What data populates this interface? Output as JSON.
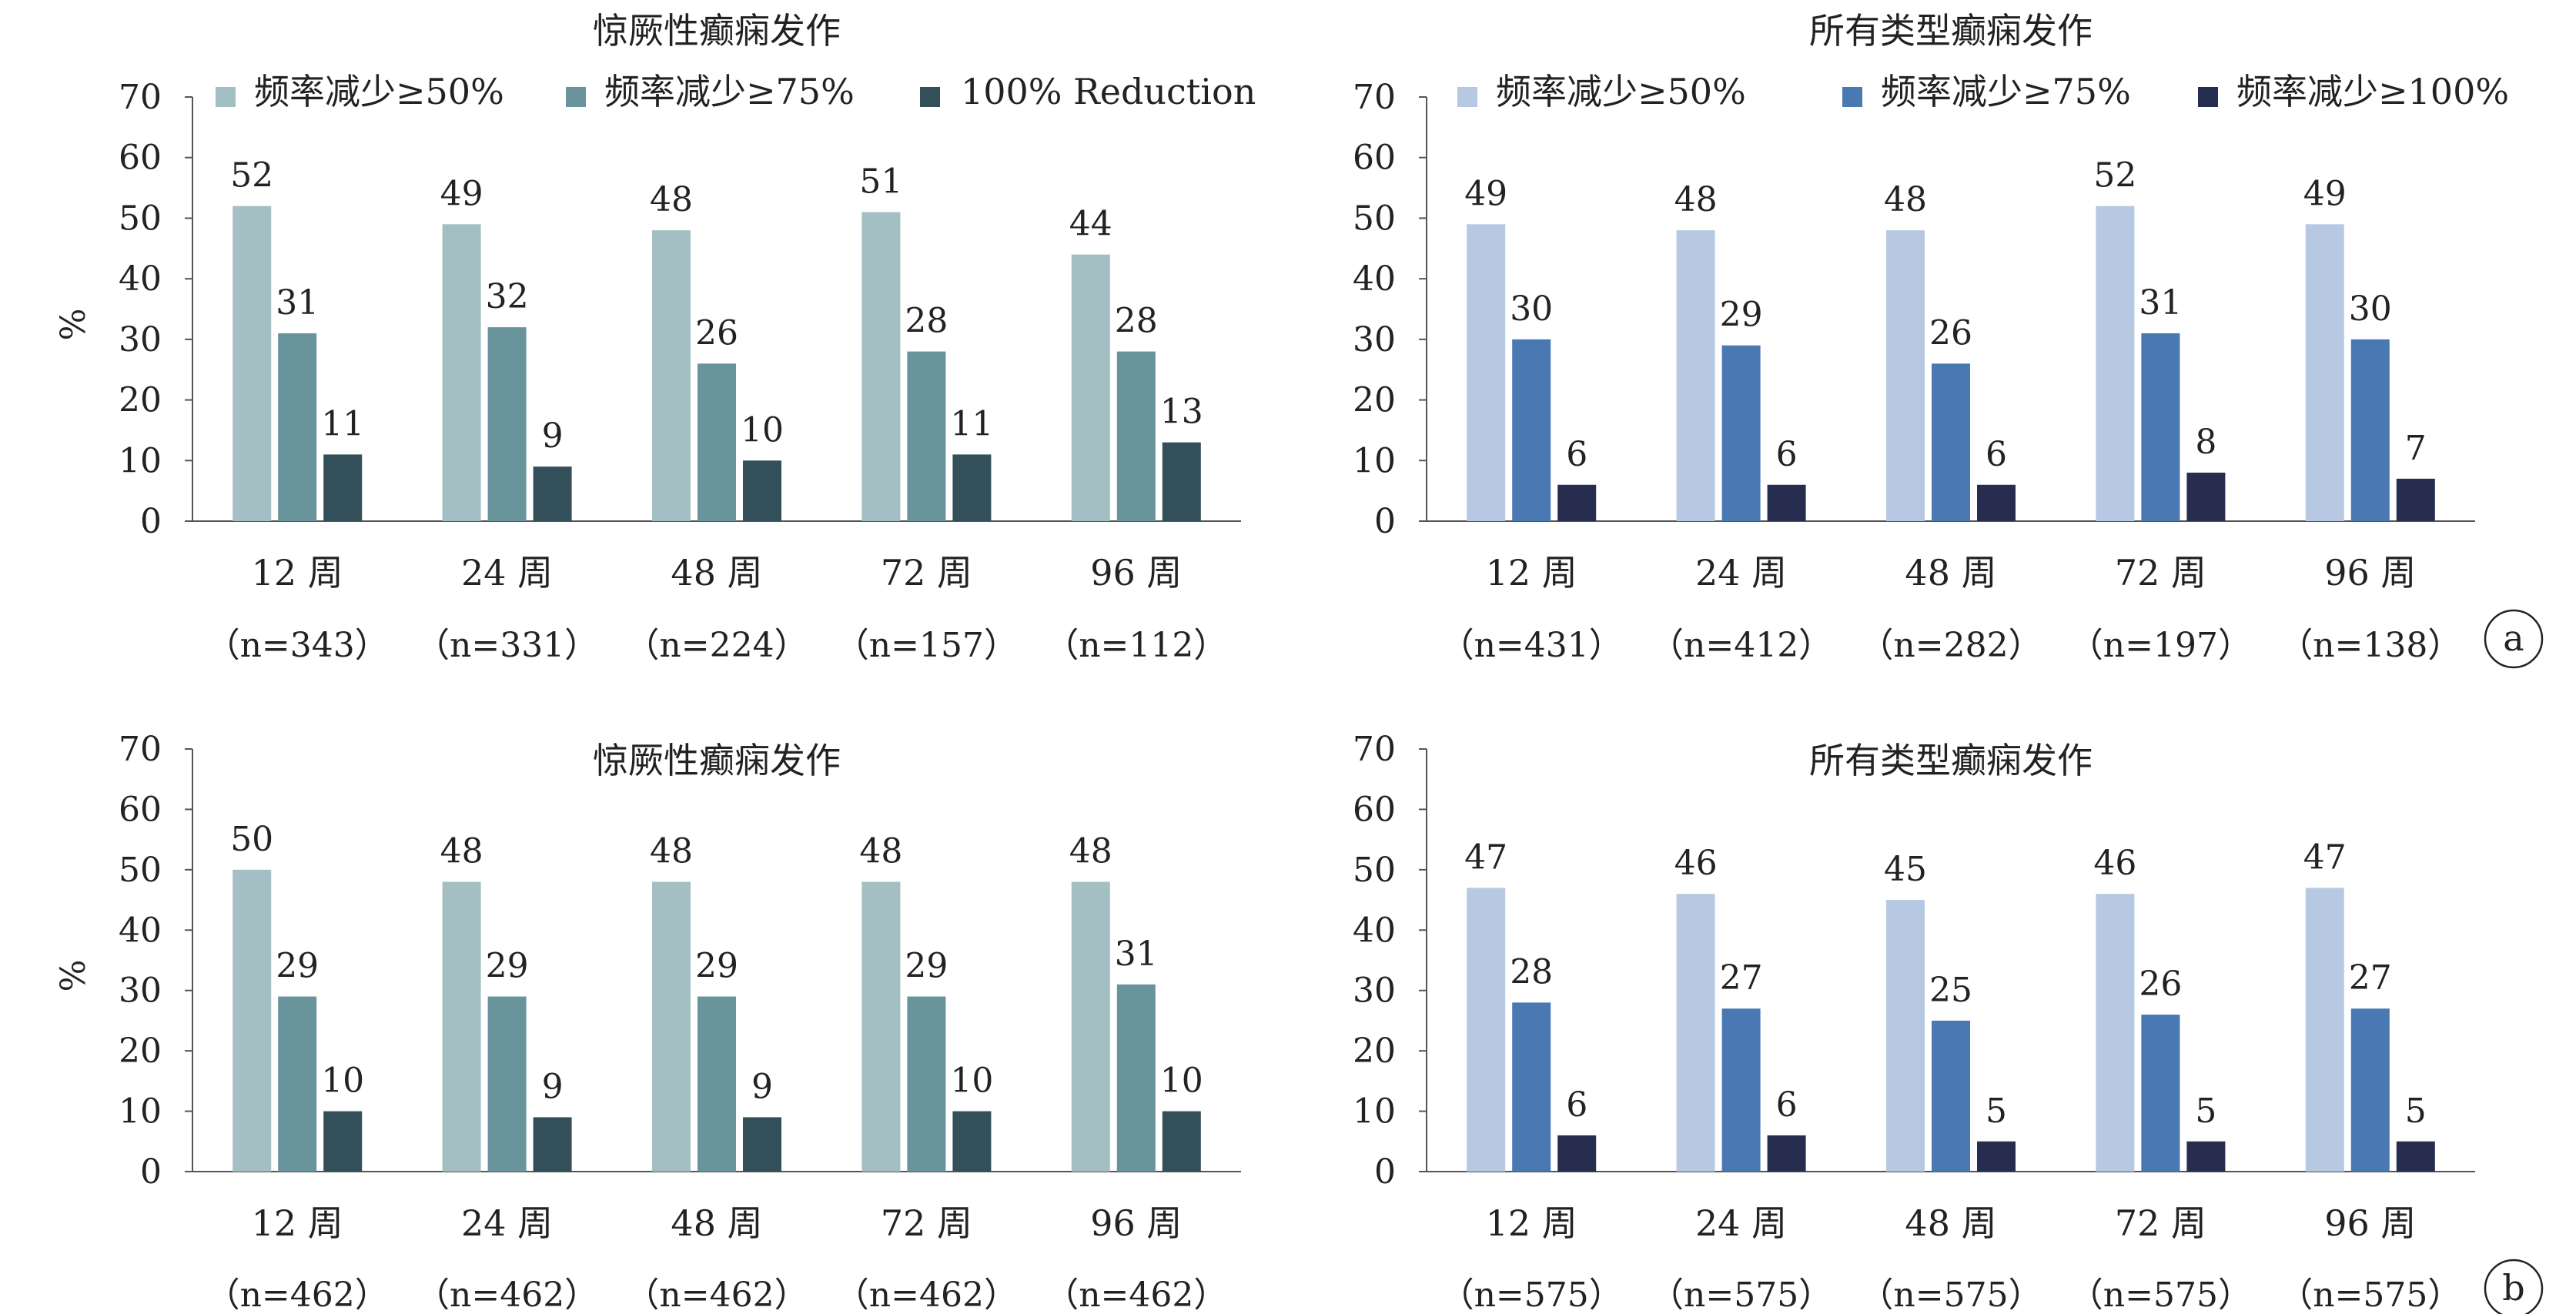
{
  "panel_labels": [
    "a",
    "b"
  ],
  "chart_data": [
    {
      "type": "bar",
      "panel": "a",
      "title": "惊厥性癫痫发作",
      "ylabel": "%",
      "ylim": [
        0,
        70
      ],
      "yticks": [
        0,
        10,
        20,
        30,
        40,
        50,
        60,
        70
      ],
      "categories": [
        "12 周",
        "24 周",
        "48 周",
        "72 周",
        "96 周"
      ],
      "category_n": [
        "（n=343）",
        "（n=331）",
        "（n=224）",
        "（n=157）",
        "（n=112）"
      ],
      "series": [
        {
          "name": "频率减少≥50%",
          "values": [
            52,
            49,
            48,
            51,
            44
          ],
          "color": "#a4bfc3"
        },
        {
          "name": "频率减少≥75%",
          "values": [
            31,
            32,
            26,
            28,
            28
          ],
          "color": "#6a949b"
        },
        {
          "name": "100% Reduction",
          "values": [
            11,
            9,
            10,
            11,
            13
          ],
          "color": "#33505a"
        }
      ],
      "legend": "top",
      "grid": false
    },
    {
      "type": "bar",
      "panel": "a",
      "title": "所有类型癫痫发作",
      "ylim": [
        0,
        70
      ],
      "yticks": [
        0,
        10,
        20,
        30,
        40,
        50,
        60,
        70
      ],
      "categories": [
        "12 周",
        "24 周",
        "48 周",
        "72 周",
        "96 周"
      ],
      "category_n": [
        "（n=431）",
        "（n=412）",
        "（n=282）",
        "（n=197）",
        "（n=138）"
      ],
      "series": [
        {
          "name": "频率减少≥50%",
          "values": [
            49,
            48,
            48,
            52,
            49
          ],
          "color": "#b7c8e2"
        },
        {
          "name": "频率减少≥75%",
          "values": [
            30,
            29,
            26,
            31,
            30
          ],
          "color": "#4a78b3"
        },
        {
          "name": "频率减少≥100%",
          "values": [
            6,
            6,
            6,
            8,
            7
          ],
          "color": "#262d4f"
        }
      ],
      "legend": "top",
      "grid": false
    },
    {
      "type": "bar",
      "panel": "b",
      "title": "惊厥性癫痫发作",
      "ylabel": "%",
      "ylim": [
        0,
        70
      ],
      "yticks": [
        0,
        10,
        20,
        30,
        40,
        50,
        60,
        70
      ],
      "categories": [
        "12 周",
        "24 周",
        "48 周",
        "72 周",
        "96 周"
      ],
      "category_n": [
        "（n=462）",
        "（n=462）",
        "（n=462）",
        "（n=462）",
        "（n=462）"
      ],
      "series": [
        {
          "values": [
            50,
            48,
            48,
            48,
            48
          ],
          "color": "#a4bfc3"
        },
        {
          "values": [
            29,
            29,
            29,
            29,
            31
          ],
          "color": "#6a949b"
        },
        {
          "values": [
            10,
            9,
            9,
            10,
            10
          ],
          "color": "#33505a"
        }
      ],
      "grid": false
    },
    {
      "type": "bar",
      "panel": "b",
      "title": "所有类型癫痫发作",
      "ylim": [
        0,
        70
      ],
      "yticks": [
        0,
        10,
        20,
        30,
        40,
        50,
        60,
        70
      ],
      "categories": [
        "12 周",
        "24 周",
        "48 周",
        "72 周",
        "96 周"
      ],
      "category_n": [
        "（n=575）",
        "（n=575）",
        "（n=575）",
        "（n=575）",
        "（n=575）"
      ],
      "series": [
        {
          "values": [
            47,
            46,
            45,
            46,
            47
          ],
          "color": "#b7c8e2"
        },
        {
          "values": [
            28,
            27,
            25,
            26,
            27
          ],
          "color": "#4a78b3"
        },
        {
          "values": [
            6,
            6,
            5,
            5,
            5
          ],
          "color": "#262d4f"
        }
      ],
      "grid": false
    }
  ]
}
